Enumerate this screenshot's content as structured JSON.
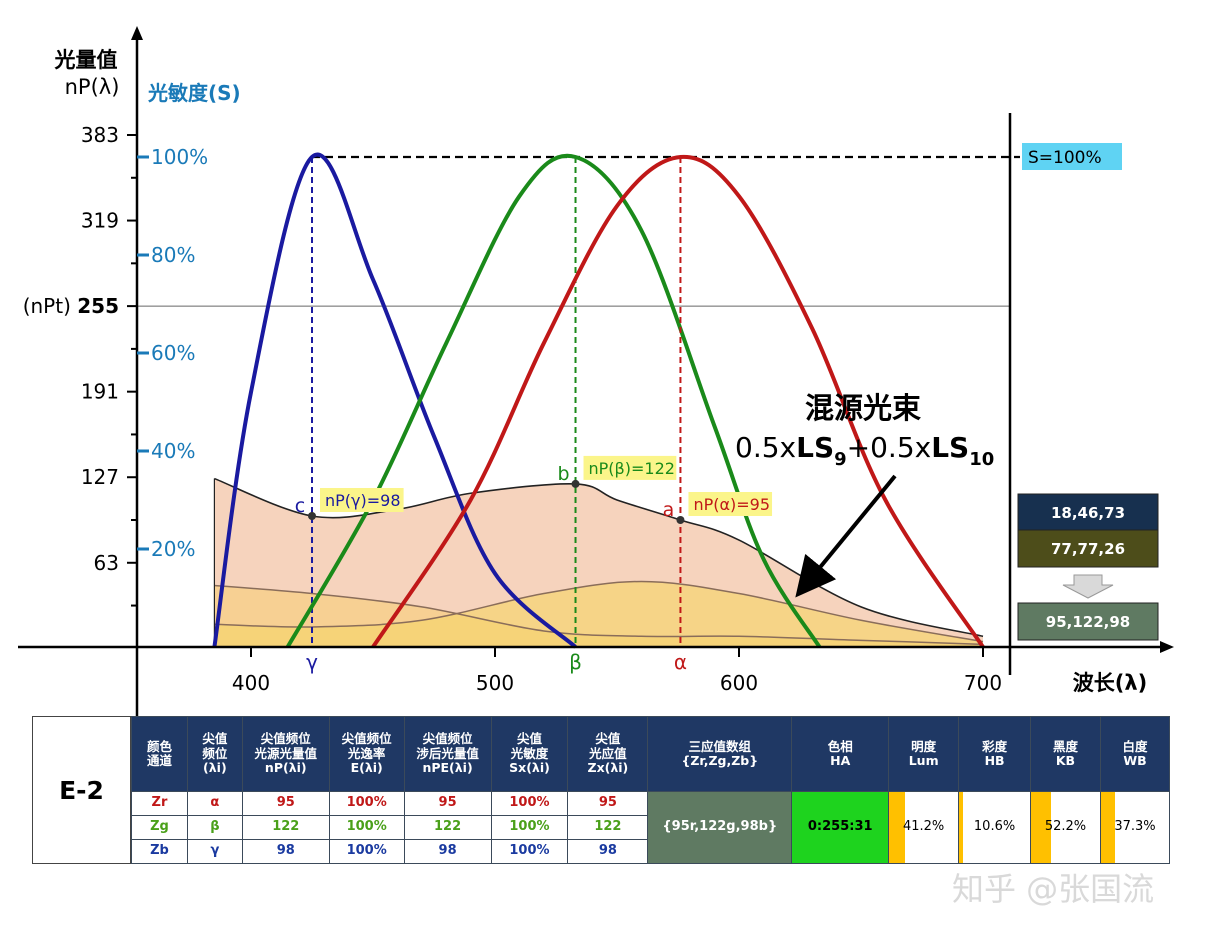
{
  "chart_data": {
    "type": "line",
    "y_axis_title": "光量值",
    "y_axis_unit": "nP(λ)",
    "sens_axis_title": "光敏度(S)",
    "x_axis_title": "波长(λ)",
    "x_ticks": [
      400,
      500,
      600,
      700
    ],
    "y_ticks": [
      383,
      319,
      255,
      191,
      127,
      63
    ],
    "y_threshold_label": "(nPt)",
    "y_threshold": 255,
    "sens_ticks": [
      "100%",
      "80%",
      "60%",
      "40%",
      "20%"
    ],
    "xlim": [
      350,
      720
    ],
    "ylim": [
      0,
      383
    ],
    "s100_label": "S=100%",
    "series": [
      {
        "name": "γ",
        "color": "#1a1aa0",
        "peak": 425,
        "x": [
          385,
          400,
          425,
          450,
          475,
          500,
          533
        ],
        "y": [
          0,
          0.52,
          1.0,
          0.75,
          0.43,
          0.15,
          0
        ]
      },
      {
        "name": "β",
        "color": "#1a8a1a",
        "peak": 533,
        "x": [
          415,
          450,
          480,
          510,
          533,
          560,
          590,
          610,
          633
        ],
        "y": [
          0,
          0.3,
          0.62,
          0.92,
          1.0,
          0.85,
          0.45,
          0.18,
          0
        ]
      },
      {
        "name": "α",
        "color": "#c01818",
        "peak": 576,
        "x": [
          450,
          490,
          520,
          550,
          576,
          600,
          630,
          660,
          700
        ],
        "y": [
          0,
          0.3,
          0.62,
          0.9,
          1.0,
          0.92,
          0.65,
          0.3,
          0
        ]
      }
    ],
    "mixed_beam": {
      "x": [
        385,
        425,
        460,
        490,
        533,
        550,
        576,
        600,
        650,
        700
      ],
      "y": [
        126,
        98,
        103,
        115,
        122,
        110,
        95,
        80,
        30,
        8
      ]
    },
    "ls9": {
      "x": [
        385,
        425,
        470,
        520,
        560,
        600,
        650,
        700
      ],
      "y": [
        46,
        40,
        30,
        12,
        8,
        8,
        5,
        2
      ]
    },
    "ls10": {
      "x": [
        385,
        425,
        470,
        520,
        560,
        600,
        650,
        700
      ],
      "y": [
        17,
        15,
        20,
        40,
        49,
        40,
        20,
        4
      ]
    },
    "points": [
      {
        "letter": "c",
        "label": "nP(γ)=98",
        "x": 425,
        "y": 98,
        "color": "#1a1aa0"
      },
      {
        "letter": "b",
        "label": "nP(β)=122",
        "x": 533,
        "y": 122,
        "color": "#1a8a1a"
      },
      {
        "letter": "a",
        "label": "nP(α)=95",
        "x": 576,
        "y": 95,
        "color": "#c01818"
      }
    ],
    "peak_labels": {
      "gamma": "γ",
      "beta": "β",
      "alpha": "α"
    },
    "annotation_title": "混源光束",
    "annotation_formula": {
      "p1": "0.5x",
      "ls": "LS",
      "sub9": "9",
      "p2": "+0.5x",
      "sub10": "10"
    },
    "side_boxes": [
      {
        "text": "18,46,73",
        "color": "#17304f"
      },
      {
        "text": "77,77,26",
        "color": "#4d4d1a"
      },
      {
        "text": "95,122,98",
        "color": "#5f7a62"
      }
    ]
  },
  "table": {
    "code": "E-2",
    "headers": [
      {
        "l1": "颜色",
        "l2": "通道",
        "l3": ""
      },
      {
        "l1": "尖值",
        "l2": "频位",
        "l3": "(λi)"
      },
      {
        "l1": "尖值频位",
        "l2": "光源光量值",
        "l3": "nP(λi)"
      },
      {
        "l1": "尖值频位",
        "l2": "光逸率",
        "l3": "E(λi)"
      },
      {
        "l1": "尖值频位",
        "l2": "涉后光量值",
        "l3": "nPE(λi)"
      },
      {
        "l1": "尖值",
        "l2": "光敏度",
        "l3": "Sx(λi)"
      },
      {
        "l1": "尖值",
        "l2": "光应值",
        "l3": "Zx(λi)"
      },
      {
        "l1": "三应值数组",
        "l2": "{Zr,Zg,Zb}",
        "l3": ""
      },
      {
        "l1": "色相",
        "l2": "HA",
        "l3": ""
      },
      {
        "l1": "明度",
        "l2": "Lum",
        "l3": ""
      },
      {
        "l1": "彩度",
        "l2": "HB",
        "l3": ""
      },
      {
        "l1": "黑度",
        "l2": "KB",
        "l3": ""
      },
      {
        "l1": "白度",
        "l2": "WB",
        "l3": ""
      }
    ],
    "rows": [
      {
        "ch": "Zr",
        "peak": "α",
        "np": "95",
        "e": "100%",
        "npe": "95",
        "s": "100%",
        "z": "95",
        "color": "#c01818"
      },
      {
        "ch": "Zg",
        "peak": "β",
        "np": "122",
        "e": "100%",
        "npe": "122",
        "s": "100%",
        "z": "122",
        "color": "#4aa01a"
      },
      {
        "ch": "Zb",
        "peak": "γ",
        "np": "98",
        "e": "100%",
        "npe": "98",
        "s": "100%",
        "z": "98",
        "color": "#1a3aa0"
      }
    ],
    "triple": "{95r,122g,98b}",
    "hue": "0:255:31",
    "lum": "41.2%",
    "lum_frac": 0.412,
    "chroma": "10.6%",
    "chroma_frac": 0.106,
    "black": "52.2%",
    "black_frac": 0.522,
    "white": "37.3%",
    "white_frac": 0.373
  },
  "watermark": "知乎 @张国流"
}
